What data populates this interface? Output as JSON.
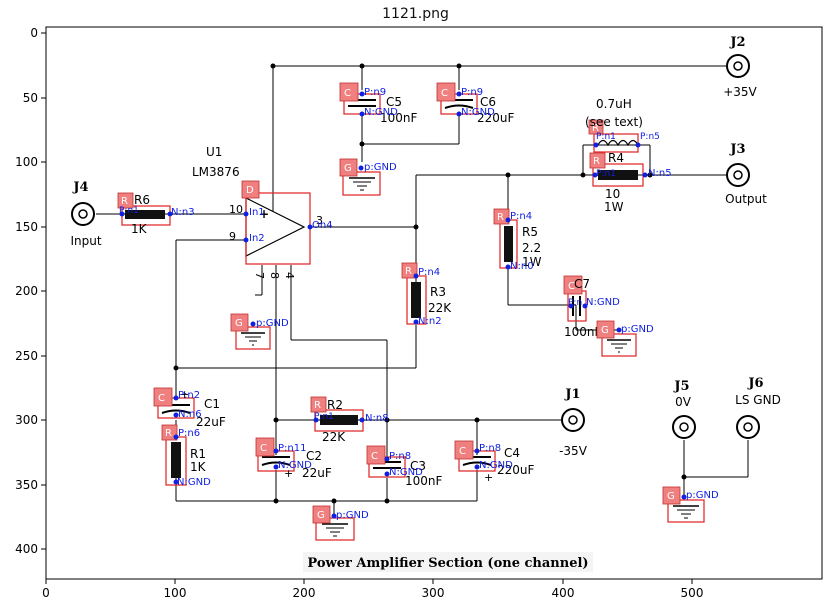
{
  "figure": {
    "title": "1121.png"
  },
  "axes": {
    "x_ticks": [
      "0",
      "100",
      "200",
      "300",
      "400",
      "500"
    ],
    "y_ticks": [
      "0",
      "50",
      "100",
      "150",
      "200",
      "250",
      "300",
      "350",
      "400"
    ]
  },
  "schematic": {
    "caption": "Power Amplifier Section (one channel)",
    "connectors": {
      "J1": {
        "id": "J1",
        "label": "-35V"
      },
      "J2": {
        "id": "J2",
        "label": "+35V"
      },
      "J3": {
        "id": "J3",
        "label": "Output"
      },
      "J4": {
        "id": "J4",
        "label": "Input"
      },
      "J5": {
        "id": "J5",
        "label": "0V"
      },
      "J6": {
        "id": "J6",
        "label": "LS GND"
      }
    },
    "ic": {
      "ref": "U1",
      "part": "LM3876",
      "pins": {
        "p10": "10",
        "p9": "9",
        "p3": "3",
        "p7": "7",
        "p8": "8",
        "p4": "4"
      }
    },
    "inductor": {
      "value": "0.7uH",
      "note": "(see text)"
    },
    "components": {
      "R6": {
        "ref": "R6",
        "value": "1K"
      },
      "R4": {
        "ref": "R4",
        "value": "10",
        "value2": "1W"
      },
      "R5": {
        "ref": "R5",
        "value": "2.2",
        "value2": "1W"
      },
      "R3": {
        "ref": "R3",
        "value": "22K"
      },
      "R2": {
        "ref": "R2",
        "value": "22K"
      },
      "R1": {
        "ref": "R1",
        "value": "1K"
      },
      "C5": {
        "ref": "C5",
        "value": "100nF"
      },
      "C6": {
        "ref": "C6",
        "value": "220uF"
      },
      "C7": {
        "ref": "C7",
        "value": "100nF"
      },
      "C1": {
        "ref": "C1",
        "value": "22uF"
      },
      "C2": {
        "ref": "C2",
        "value": "22uF"
      },
      "C3": {
        "ref": "C3",
        "value": "100nF"
      },
      "C4": {
        "ref": "C4",
        "value": "220uF"
      }
    },
    "tags": {
      "C": "C",
      "R": "R",
      "G": "G",
      "D": "D",
      "P_n9": "P:n9",
      "N_GND": "N:GND",
      "p_GND": "p:GND",
      "P_n1": "P:n1",
      "N_n3": "N:n3",
      "In1": "In1",
      "In2": "In2",
      "On4": "On4",
      "P_n4": "P:n4",
      "N_n2": "N:n2",
      "P_n5": "P:n5",
      "N_n5": "N:n5",
      "P_n_n4": "P:n4",
      "N_n10": "N:n0",
      "P_n_C7": "P:n",
      "P_n2": "P:n2",
      "N_n6": "N:n6",
      "P_n6": "P:n6",
      "P_n11": "P:n11",
      "N_n8": "N:n8",
      "P_n8": "P:n8",
      "R_n": "P:n1"
    }
  }
}
